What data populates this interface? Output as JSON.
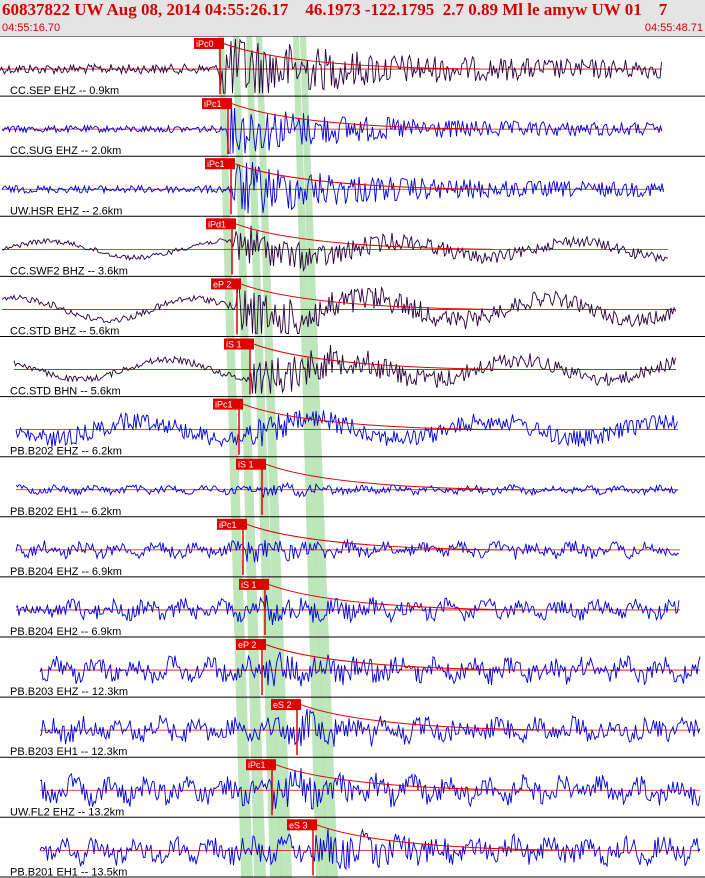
{
  "header": {
    "title": "60837822 UW Aug 08, 2014 04:55:26.17    46.1973 -122.1795  2.7 0.89 Ml le amyw UW 01    7",
    "time_start": "04:55:16.70",
    "time_end": "04:55:48.71"
  },
  "colors": {
    "header_bg": "#e4e4e4",
    "title_red": "#d40000",
    "trace_blue": "#0000dd",
    "trace_purple": "#2a0040",
    "pick_red": "#e00000",
    "window_green": "#b7e3b4"
  },
  "chart_data": {
    "type": "line",
    "title": "60837822 UW Aug 08, 2014 04:55:26.17    46.1973 -122.1795  2.7 0.89 Ml le amyw UW 01    7",
    "x_range": [
      "04:55:16.70",
      "04:55:48.71"
    ],
    "series": [
      {
        "name": "CC.SEP EHZ -- 0.9km",
        "pick": "iPc0",
        "channel_color": "purple"
      },
      {
        "name": "CC.SUG EHZ -- 2.0km",
        "pick": "iPc1",
        "channel_color": "blue"
      },
      {
        "name": "UW.HSR EHZ -- 2.6km",
        "pick": "iPc1",
        "channel_color": "blue"
      },
      {
        "name": "CC.SWF2 BHZ -- 3.6km",
        "pick": "iPd1",
        "channel_color": "purple"
      },
      {
        "name": "CC.STD BHZ -- 5.6km",
        "pick": "eP 2",
        "channel_color": "purple"
      },
      {
        "name": "CC.STD BHN -- 5.6km",
        "pick": "iS 1",
        "channel_color": "purple"
      },
      {
        "name": "PB.B202 EHZ -- 6.2km",
        "pick": "iPc1",
        "channel_color": "blue"
      },
      {
        "name": "PB.B202 EH1 -- 6.2km",
        "pick": "iS 1",
        "channel_color": "blue"
      },
      {
        "name": "PB.B204 EHZ -- 6.9km",
        "pick": "iPc1",
        "channel_color": "blue"
      },
      {
        "name": "PB.B204 EH2 -- 6.9km",
        "pick": "iS 1",
        "channel_color": "blue"
      },
      {
        "name": "PB.B203 EHZ -- 12.3km",
        "pick": "eP 2",
        "channel_color": "blue"
      },
      {
        "name": "PB.B203 EH1 -- 12.3km",
        "pick": "eS 2",
        "channel_color": "blue"
      },
      {
        "name": "UW.FL2 EHZ -- 13.2km",
        "pick": "iPc1",
        "channel_color": "blue"
      },
      {
        "name": "PB.B201 EH1 -- 13.5km",
        "pick": "eS 3",
        "channel_color": "blue"
      }
    ]
  }
}
